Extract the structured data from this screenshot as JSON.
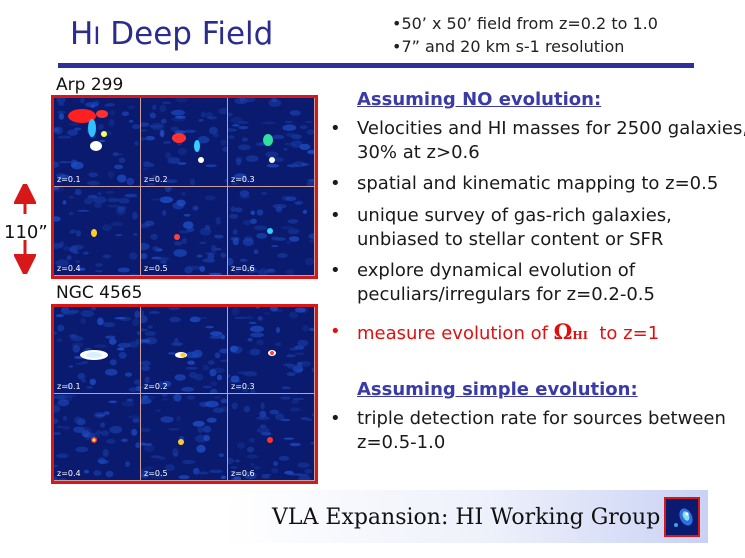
{
  "header": {
    "title_main": "Deep Field",
    "title_prefix_h": "H",
    "title_prefix_i": "I",
    "spec_lines": [
      "•50’ x 50’ field from z=0.2 to 1.0",
      "•7” and 20 km s-1 resolution"
    ]
  },
  "scale": {
    "label": "110”"
  },
  "galleries": [
    {
      "name": "Arp 299",
      "panels": [
        "z=0.1",
        "z=0.2",
        "z=0.3",
        "z=0.4",
        "z=0.5",
        "z=0.6"
      ]
    },
    {
      "name": "NGC 4565",
      "panels": [
        "z=0.1",
        "z=0.2",
        "z=0.3",
        "z=0.4",
        "z=0.5",
        "z=0.6"
      ]
    }
  ],
  "sections": [
    {
      "heading": "Assuming NO evolution:",
      "bullets": [
        "Velocities and HI masses for 2500 galaxies, 30% at z>0.6",
        "spatial and kinematic mapping to z=0.5",
        "unique survey of gas-rich galaxies, unbiased to stellar content or SFR",
        "explore dynamical evolution of peculiars/irregulars for z=0.2-0.5"
      ],
      "highlight": {
        "before": "measure evolution of",
        "symbol": "Ω",
        "symbol_sub": "HI",
        "after": "to z=1",
        "color": "#e01010"
      }
    },
    {
      "heading": "Assuming simple evolution:",
      "bullets": [
        "triple detection rate for sources between z=0.5-1.0"
      ]
    }
  ],
  "footer": {
    "text": "VLA Expansion:  HI Working Group"
  },
  "colors": {
    "accent_blue": "#2b2d8e",
    "frame_red": "#d81818",
    "bullet_text": "#1a1a1a"
  }
}
